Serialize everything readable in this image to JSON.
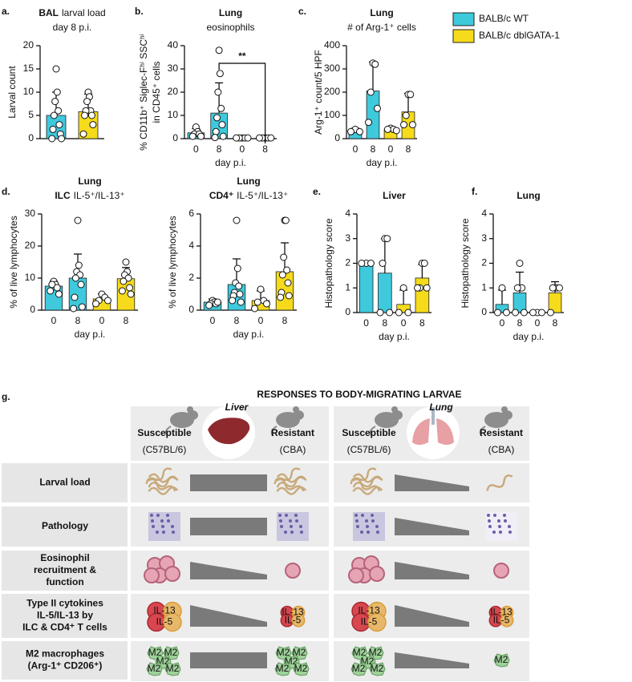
{
  "chart_data": [
    {
      "type": "bar",
      "panel": "a.",
      "title": [
        [
          {
            "text": "BAL",
            "bold": true
          },
          {
            "text": "larval load"
          }
        ],
        [
          {
            "text": "day 8 p.i."
          }
        ]
      ],
      "ylabel": [
        "Larval count"
      ],
      "categories": [
        null,
        null
      ],
      "values": [
        5,
        5.8
      ],
      "errors": [
        5,
        3.8
      ],
      "colors": [
        "#3fc9dc",
        "#f5db1b"
      ],
      "points": [
        [
          15,
          10,
          8,
          6,
          5,
          3,
          2,
          1,
          0,
          0
        ],
        [
          10,
          9,
          8,
          6,
          6,
          5,
          5,
          3,
          1
        ]
      ],
      "ylim": [
        0,
        20
      ],
      "yticks": [
        0,
        5,
        10,
        15,
        20
      ]
    },
    {
      "type": "bar",
      "panel": "b.",
      "title": [
        [
          {
            "text": "Lung",
            "bold": true
          }
        ],
        [
          {
            "text": "eosinophils"
          }
        ]
      ],
      "ylabel": [
        "% CD11b⁺ Siglec-Fʰⁱ SSCʰⁱ",
        "in CD45⁺ cells"
      ],
      "xlabel": "day p.i.",
      "categories": [
        "0",
        "8",
        "0",
        "8"
      ],
      "values": [
        2.5,
        11,
        0.3,
        0.3
      ],
      "errors": [
        1.8,
        13,
        0.1,
        0.1
      ],
      "colors": [
        "#3fc9dc",
        "#3fc9dc",
        "#f5db1b",
        "#f5db1b"
      ],
      "points": [
        [
          5,
          3,
          2,
          2,
          1,
          1
        ],
        [
          38,
          28,
          20,
          13,
          9,
          6,
          3,
          1,
          0.5
        ],
        [
          0.3,
          0.3,
          0.3,
          0.3,
          0.3
        ],
        [
          0.3,
          0.3,
          0.3,
          0.3,
          0.3
        ]
      ],
      "ylim": [
        0,
        40
      ],
      "yticks": [
        0,
        10,
        20,
        30,
        40
      ],
      "significance": {
        "label": "**",
        "between": [
          1,
          3
        ]
      }
    },
    {
      "type": "bar",
      "panel": "c.",
      "title": [
        [
          {
            "text": "Lung",
            "bold": true
          }
        ],
        [
          {
            "text": "# of Arg-1⁺ cells"
          }
        ]
      ],
      "ylabel": [
        "Arg-1⁺ count/5 HPF"
      ],
      "xlabel": "day p.i.",
      "categories": [
        "0",
        "8",
        "0",
        "8"
      ],
      "values": [
        35,
        205,
        40,
        115
      ],
      "errors": [
        10,
        125,
        8,
        80
      ],
      "colors": [
        "#3fc9dc",
        "#3fc9dc",
        "#f5db1b",
        "#f5db1b"
      ],
      "points": [
        [
          40,
          30,
          30
        ],
        [
          325,
          320,
          200,
          130,
          70
        ],
        [
          45,
          40,
          40,
          35
        ],
        [
          190,
          190,
          100,
          60,
          60
        ]
      ],
      "ylim": [
        0,
        400
      ],
      "yticks": [
        0,
        100,
        200,
        300,
        400
      ],
      "legend": {
        "position": "top-right",
        "entries": [
          {
            "name": "BALB/c WT",
            "color": "#3fc9dc"
          },
          {
            "name": "BALB/c dblGATA-1",
            "color": "#f5db1b"
          }
        ]
      }
    },
    {
      "type": "bar",
      "panel": "d.",
      "title": [
        [
          {
            "text": "Lung",
            "bold": true
          }
        ],
        [
          {
            "text": "ILC",
            "bold": true
          },
          {
            "text": "IL-5⁺/IL-13⁺"
          }
        ]
      ],
      "ylabel": [
        "% of live lymphocytes"
      ],
      "xlabel": "day p.i.",
      "categories": [
        "0",
        "8",
        "0",
        "8"
      ],
      "values": [
        7.5,
        10,
        3.5,
        9.8
      ],
      "errors": [
        1.5,
        7.5,
        1.5,
        3.5
      ],
      "colors": [
        "#3fc9dc",
        "#3fc9dc",
        "#f5db1b",
        "#f5db1b"
      ],
      "points": [
        [
          9,
          8,
          8,
          7,
          6,
          5
        ],
        [
          28,
          14,
          12,
          11,
          10,
          8,
          4,
          1,
          0.5
        ],
        [
          5,
          4,
          3,
          3,
          2
        ],
        [
          15,
          12,
          11,
          10,
          9,
          7,
          6,
          5
        ]
      ],
      "ylim": [
        0,
        30
      ],
      "yticks": [
        0,
        10,
        20,
        30
      ]
    },
    {
      "type": "bar",
      "title": [
        [
          {
            "text": "Lung",
            "bold": true
          }
        ],
        [
          {
            "text": "CD4⁺",
            "bold": true
          },
          {
            "text": "IL-5⁺/IL-13⁺"
          }
        ]
      ],
      "ylabel": [
        "% of live lymphocytes"
      ],
      "xlabel": "day p.i.",
      "categories": [
        "0",
        "8",
        "0",
        "8"
      ],
      "values": [
        0.5,
        1.6,
        0.6,
        2.4
      ],
      "errors": [
        0.2,
        1.6,
        0.6,
        1.8
      ],
      "colors": [
        "#3fc9dc",
        "#3fc9dc",
        "#f5db1b",
        "#f5db1b"
      ],
      "points": [
        [
          0.6,
          0.5,
          0.4,
          0.4,
          0.3,
          0.5
        ],
        [
          5.6,
          2.6,
          1.7,
          1.5,
          1.1,
          1,
          0.9,
          0.5,
          0.6
        ],
        [
          1.3,
          0.6,
          0.5,
          0.4,
          0.1
        ],
        [
          5.6,
          5.6,
          3.3,
          2.5,
          2.2,
          1.7,
          1.1,
          0.9,
          0.8
        ]
      ],
      "ylim": [
        0,
        6
      ],
      "yticks": [
        0,
        2,
        4,
        6
      ]
    },
    {
      "type": "bar",
      "panel": "e.",
      "title": [
        [
          {
            "text": "Liver",
            "bold": true
          }
        ]
      ],
      "ylabel": [
        "Histopathology score"
      ],
      "xlabel": "day p.i.",
      "categories": [
        "0",
        "8",
        "0",
        "8"
      ],
      "values": [
        2,
        1.6,
        0.33,
        1.4
      ],
      "errors": [
        0,
        1.4,
        0.58,
        0.55
      ],
      "colors": [
        "#3fc9dc",
        "#3fc9dc",
        "#f5db1b",
        "#f5db1b"
      ],
      "points": [
        [
          2,
          2,
          2
        ],
        [
          3,
          3,
          2,
          0,
          0
        ],
        [
          1,
          0,
          0
        ],
        [
          2,
          2,
          1,
          1,
          1
        ]
      ],
      "ylim": [
        0,
        4
      ],
      "yticks": [
        0,
        1,
        2,
        3,
        4
      ]
    },
    {
      "type": "bar",
      "panel": "f.",
      "title": [
        [
          {
            "text": "Lung",
            "bold": true
          }
        ]
      ],
      "ylabel": [
        "Histopathology score"
      ],
      "xlabel": "day p.i.",
      "categories": [
        "0",
        "8",
        "0",
        "8"
      ],
      "values": [
        0.33,
        0.8,
        0,
        0.8
      ],
      "errors": [
        0.58,
        0.84,
        0,
        0.45
      ],
      "colors": [
        "#3fc9dc",
        "#3fc9dc",
        "#f5db1b",
        "#f5db1b"
      ],
      "points": [
        [
          1,
          0,
          0
        ],
        [
          2,
          1,
          1,
          0,
          0
        ],
        [
          0,
          0,
          0
        ],
        [
          1,
          1,
          1,
          1,
          0
        ]
      ],
      "ylim": [
        0,
        4
      ],
      "yticks": [
        0,
        1,
        2,
        3,
        4
      ]
    }
  ],
  "panel_g": {
    "label": "g.",
    "title": "RESPONSES TO BODY-MIGRATING LARVAE",
    "organs": [
      {
        "name": "Liver",
        "susceptible": "Susceptible",
        "susceptible_strain": "(C57BL/6)",
        "resistant": "Resistant",
        "resistant_strain": "(CBA)",
        "trends": [
          "flat",
          "flat",
          "decrease",
          "decrease",
          "flat"
        ]
      },
      {
        "name": "Lung",
        "susceptible": "Susceptible",
        "susceptible_strain": "(C57BL/6)",
        "resistant": "Resistant",
        "resistant_strain": "(CBA)",
        "trends": [
          "decrease",
          "decrease",
          "decrease",
          "decrease",
          "decrease"
        ]
      }
    ],
    "rows": [
      [
        "Larval load"
      ],
      [
        "Pathology"
      ],
      [
        "Eosinophil",
        "recruitment &",
        "function"
      ],
      [
        "Type II cytokines",
        "IL-5/IL-13 by",
        "ILC & CD4⁺ T cells"
      ],
      [
        "M2 macrophages",
        "(Arg-1⁺ CD206⁺)"
      ]
    ],
    "cytokine_labels": [
      "IL-13",
      "IL-5"
    ],
    "macrophage_label": "M2"
  }
}
